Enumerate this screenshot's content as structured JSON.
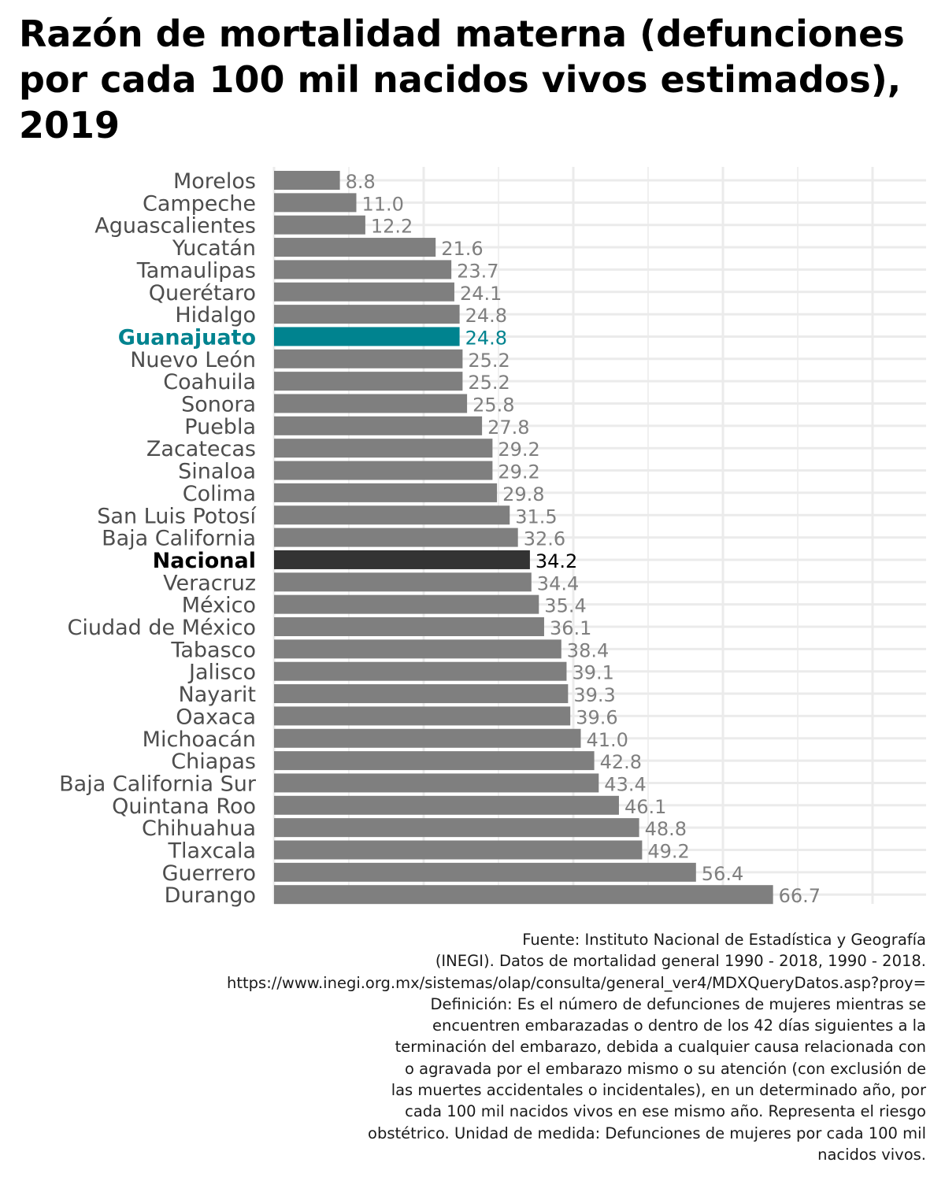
{
  "chart_data": {
    "type": "bar",
    "orientation": "horizontal",
    "title": "Razón de mortalidad materna (defunciones por cada 100 mil nacidos vivos estimados), 2019",
    "xlabel": "",
    "ylabel": "",
    "xlim": [
      0,
      70
    ],
    "grid": true,
    "legend": "none",
    "categories": [
      "Morelos",
      "Campeche",
      "Aguascalientes",
      "Yucatán",
      "Tamaulipas",
      "Querétaro",
      "Hidalgo",
      "Guanajuato",
      "Nuevo León",
      "Coahuila",
      "Sonora",
      "Puebla",
      "Zacatecas",
      "Sinaloa",
      "Colima",
      "San Luis Potosí",
      "Baja California",
      "Nacional",
      "Veracruz",
      "México",
      "Ciudad de México",
      "Tabasco",
      "Jalisco",
      "Nayarit",
      "Oaxaca",
      "Michoacán",
      "Chiapas",
      "Baja California Sur",
      "Quintana Roo",
      "Chihuahua",
      "Tlaxcala",
      "Guerrero",
      "Durango"
    ],
    "values": [
      8.8,
      11.0,
      12.2,
      21.6,
      23.7,
      24.1,
      24.8,
      24.8,
      25.2,
      25.2,
      25.8,
      27.8,
      29.2,
      29.2,
      29.8,
      31.5,
      32.6,
      34.2,
      34.4,
      35.4,
      36.1,
      38.4,
      39.1,
      39.3,
      39.6,
      41.0,
      42.8,
      43.4,
      46.1,
      48.8,
      49.2,
      56.4,
      66.7
    ],
    "labels": [
      "8.8",
      "11.0",
      "12.2",
      "21.6",
      "23.7",
      "24.1",
      "24.8",
      "24.8",
      "25.2",
      "25.2",
      "25.8",
      "27.8",
      "29.2",
      "29.2",
      "29.8",
      "31.5",
      "32.6",
      "34.2",
      "34.4",
      "35.4",
      "36.1",
      "38.4",
      "39.1",
      "39.3",
      "39.6",
      "41.0",
      "42.8",
      "43.4",
      "46.1",
      "48.8",
      "49.2",
      "56.4",
      "66.7"
    ],
    "highlight": {
      "Guanajuato": "#00838f",
      "Nacional": "#333333"
    },
    "colors": {
      "bar": "#7f7f7f",
      "value_label": "#7f7f7f",
      "category_label": "#4d4d4d",
      "grid": "#ebebeb",
      "highlight_label_guanajuato": "#00838f",
      "highlight_label_nacional": "#000000"
    }
  },
  "caption": {
    "lines": [
      "Fuente: Instituto Nacional de Estadística y Geografía",
      "(INEGI). Datos de mortalidad general 1990 - 2018, 1990 - 2018.",
      "https://www.inegi.org.mx/sistemas/olap/consulta/general_ver4/MDXQueryDatos.asp?proy=",
      "Definición: Es el número de defunciones de mujeres mientras se",
      "encuentren embarazadas o dentro de los 42 días siguientes a la",
      "terminación del embarazo, debida a cualquier causa relacionada con",
      "o agravada por el embarazo mismo o su atención (con exclusión de",
      "las muertes accidentales o incidentales), en un determinado año, por",
      "cada 100 mil nacidos vivos en ese mismo año. Representa el riesgo",
      "obstétrico. Unidad de medida: Defunciones de mujeres por cada 100 mil",
      "nacidos vivos."
    ]
  }
}
